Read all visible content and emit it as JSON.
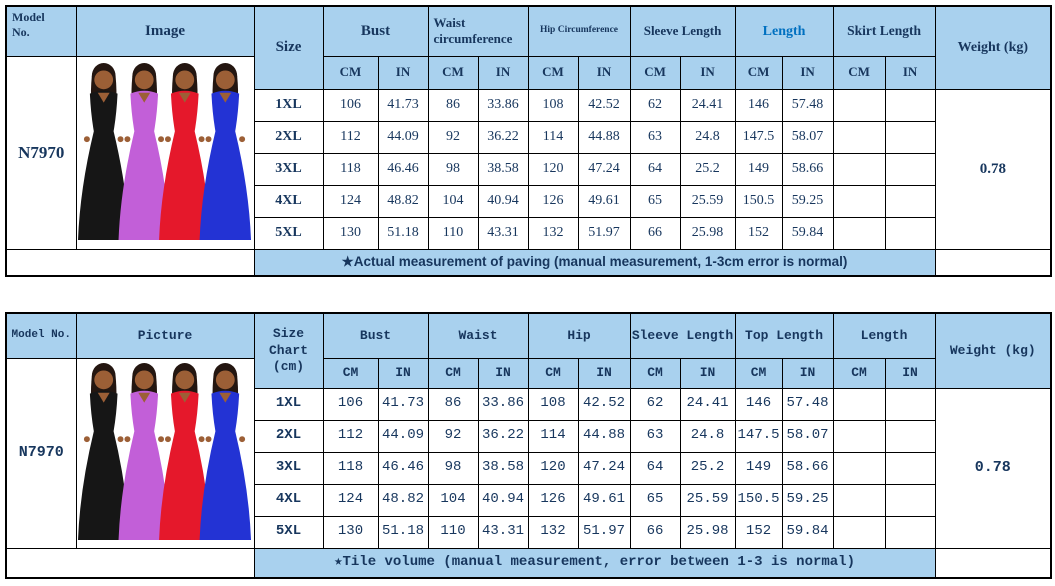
{
  "colors": {
    "header_bg": "#a9d1ee",
    "navy": "#17365d",
    "length_blue": "#0070c0",
    "border": "#000000",
    "garments": [
      "#161616",
      "#c25fd8",
      "#e5182b",
      "#2333d4"
    ],
    "skin": "#9c5f36",
    "hair": "#241610"
  },
  "table1": {
    "headers": {
      "model": "Model No.",
      "image": "Image",
      "size": "Size",
      "bust": "Bust",
      "waist": "Waist circumference",
      "hip": "Hip Circumference",
      "sleeve": "Sleeve Length",
      "length": "Length",
      "skirt": "Skirt Length",
      "weight": "Weight (kg)"
    },
    "units": [
      "CM",
      "IN"
    ],
    "model": "N7970",
    "weight": "0.78",
    "rows": [
      {
        "size": "1XL",
        "values": [
          "106",
          "41.73",
          "86",
          "33.86",
          "108",
          "42.52",
          "62",
          "24.41",
          "146",
          "57.48",
          "",
          ""
        ]
      },
      {
        "size": "2XL",
        "values": [
          "112",
          "44.09",
          "92",
          "36.22",
          "114",
          "44.88",
          "63",
          "24.8",
          "147.5",
          "58.07",
          "",
          ""
        ]
      },
      {
        "size": "3XL",
        "values": [
          "118",
          "46.46",
          "98",
          "38.58",
          "120",
          "47.24",
          "64",
          "25.2",
          "149",
          "58.66",
          "",
          ""
        ]
      },
      {
        "size": "4XL",
        "values": [
          "124",
          "48.82",
          "104",
          "40.94",
          "126",
          "49.61",
          "65",
          "25.59",
          "150.5",
          "59.25",
          "",
          ""
        ]
      },
      {
        "size": "5XL",
        "values": [
          "130",
          "51.18",
          "110",
          "43.31",
          "132",
          "51.97",
          "66",
          "25.98",
          "152",
          "59.84",
          "",
          ""
        ]
      }
    ],
    "footer": "★Actual measurement of paving (manual measurement, 1-3cm error is normal)"
  },
  "table2": {
    "headers": {
      "model": "Model No.",
      "image": "Picture",
      "size": "Size Chart (cm)",
      "bust": "Bust",
      "waist": "Waist",
      "hip": "Hip",
      "sleeve": "Sleeve Length",
      "length": "Top Length",
      "skirt": "Length",
      "weight": "Weight (kg)"
    },
    "units": [
      "CM",
      "IN"
    ],
    "model": "N7970",
    "weight": "0.78",
    "rows": [
      {
        "size": "1XL",
        "values": [
          "106",
          "41.73",
          "86",
          "33.86",
          "108",
          "42.52",
          "62",
          "24.41",
          "146",
          "57.48",
          "",
          ""
        ]
      },
      {
        "size": "2XL",
        "values": [
          "112",
          "44.09",
          "92",
          "36.22",
          "114",
          "44.88",
          "63",
          "24.8",
          "147.5",
          "58.07",
          "",
          ""
        ]
      },
      {
        "size": "3XL",
        "values": [
          "118",
          "46.46",
          "98",
          "38.58",
          "120",
          "47.24",
          "64",
          "25.2",
          "149",
          "58.66",
          "",
          ""
        ]
      },
      {
        "size": "4XL",
        "values": [
          "124",
          "48.82",
          "104",
          "40.94",
          "126",
          "49.61",
          "65",
          "25.59",
          "150.5",
          "59.25",
          "",
          ""
        ]
      },
      {
        "size": "5XL",
        "values": [
          "130",
          "51.18",
          "110",
          "43.31",
          "132",
          "51.97",
          "66",
          "25.98",
          "152",
          "59.84",
          "",
          ""
        ]
      }
    ],
    "footer": "★Tile volume (manual measurement, error between 1-3 is normal)"
  }
}
